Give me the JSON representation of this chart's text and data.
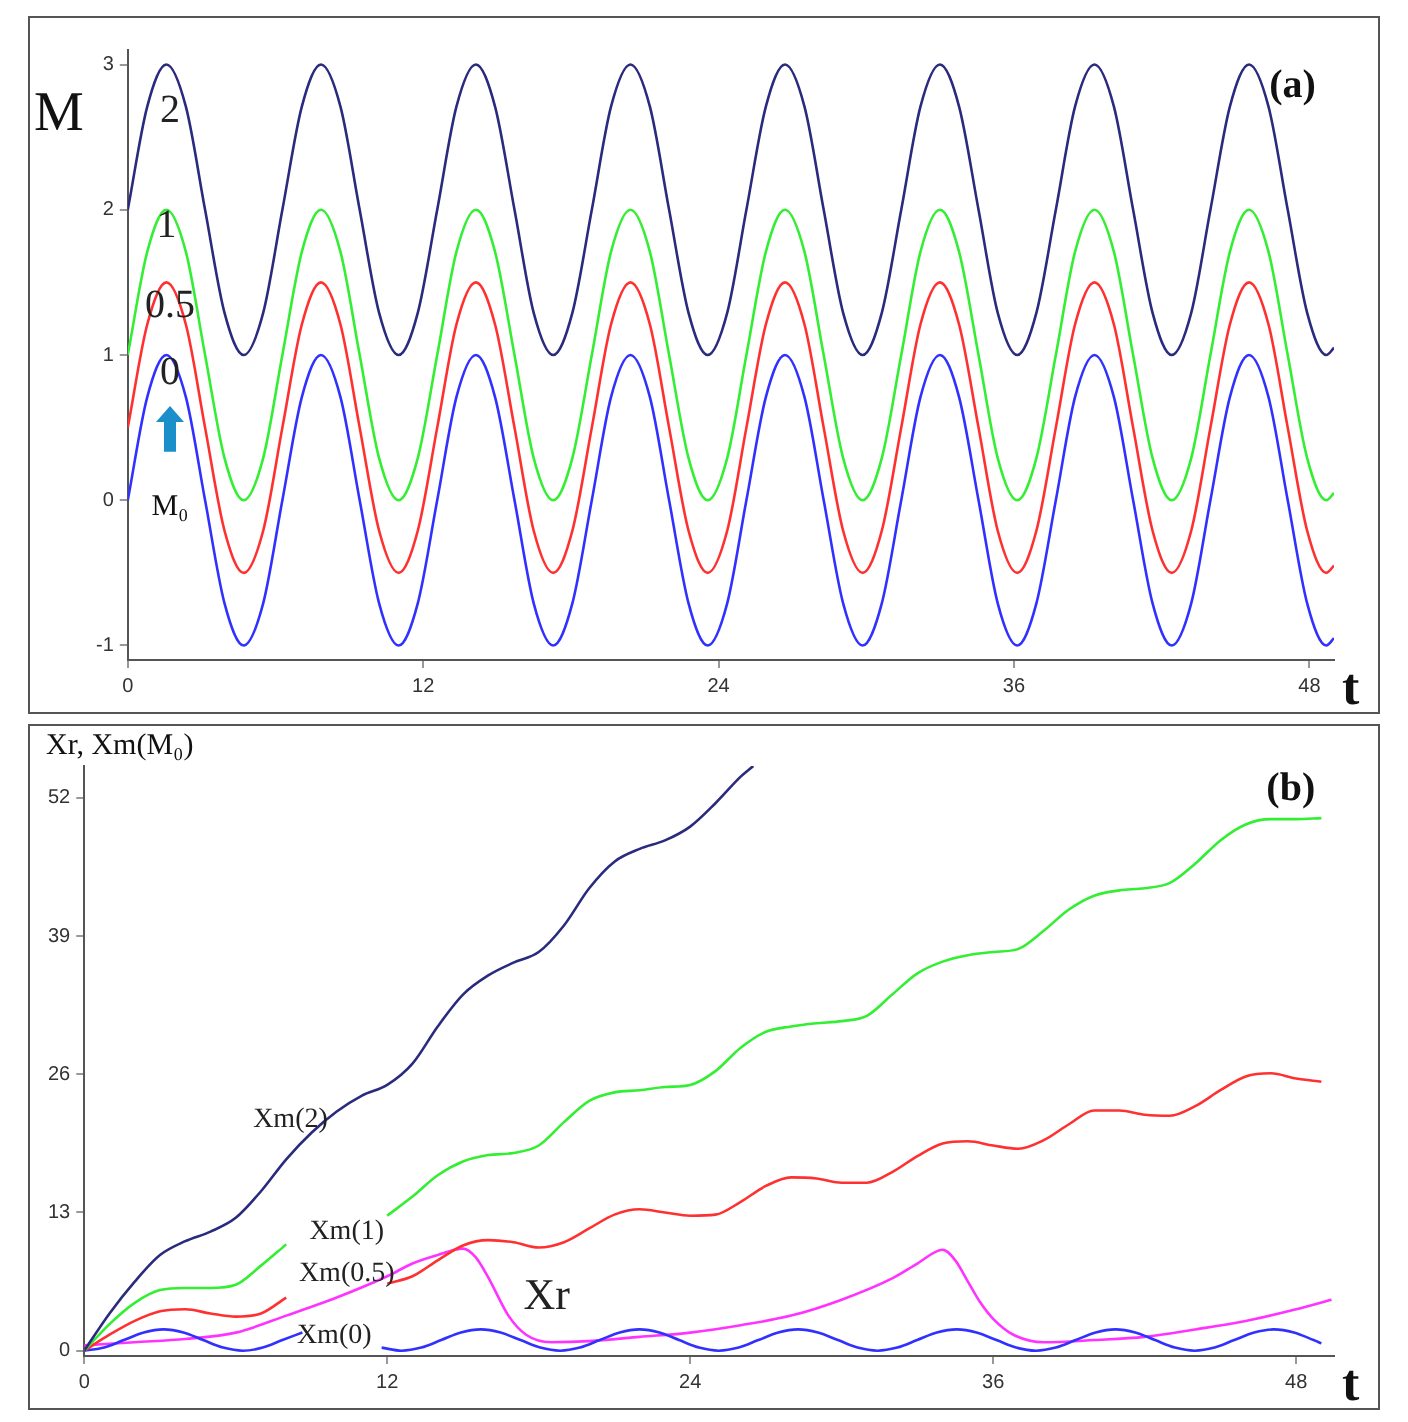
{
  "chart_data": [
    {
      "type": "line",
      "xlabel": "t",
      "ylabel": "M",
      "annotations": [
        "(a)",
        "M₀"
      ],
      "x": [
        0,
        0.79,
        1.57,
        2.36,
        3.14,
        3.93,
        4.71,
        5.5,
        6.28,
        7.07,
        7.85,
        8.64,
        9.42,
        10.21,
        11,
        11.78,
        12.57,
        13.35,
        14.14,
        14.92,
        15.71,
        16.49,
        17.28,
        18.06,
        18.85,
        19.63,
        20.42,
        21.21,
        21.99,
        22.78,
        23.56,
        24.35,
        25.13,
        25.92,
        26.7,
        27.49,
        28.27,
        29.06,
        29.85,
        30.63,
        31.42,
        32.2,
        32.99,
        33.77,
        34.56,
        35.34,
        36.13,
        36.91,
        37.7,
        38.48,
        39.27,
        40.06,
        40.84,
        41.63,
        42.41,
        43.2,
        43.98,
        44.77,
        45.55,
        46.34,
        47.12,
        47.91,
        48.69,
        49
      ],
      "xlim": [
        0,
        49
      ],
      "xticks": [
        0,
        12,
        24,
        36,
        48
      ],
      "ylim": [
        -1.1,
        3.1
      ],
      "yticks": [
        -1,
        0,
        1,
        2,
        3
      ],
      "series": [
        {
          "name": "2",
          "color": "#2a2a7e",
          "values": [
            2,
            2.71,
            3,
            2.71,
            2,
            1.29,
            1,
            1.29,
            2,
            2.71,
            3,
            2.71,
            2,
            1.29,
            1,
            1.29,
            2,
            2.71,
            3,
            2.71,
            2,
            1.29,
            1,
            1.29,
            2,
            2.71,
            3,
            2.71,
            2,
            1.29,
            1,
            1.29,
            2,
            2.71,
            3,
            2.71,
            2,
            1.29,
            1,
            1.29,
            2,
            2.71,
            3,
            2.71,
            2,
            1.29,
            1,
            1.29,
            2,
            2.71,
            3,
            2.71,
            2,
            1.29,
            1,
            1.29,
            2,
            2.71,
            3,
            2.71,
            2,
            1.29,
            1,
            1.05
          ]
        },
        {
          "name": "1",
          "color": "#33ee33",
          "values": [
            1,
            1.71,
            2,
            1.71,
            1,
            0.29,
            0,
            0.29,
            1,
            1.71,
            2,
            1.71,
            1,
            0.29,
            0,
            0.29,
            1,
            1.71,
            2,
            1.71,
            1,
            0.29,
            0,
            0.29,
            1,
            1.71,
            2,
            1.71,
            1,
            0.29,
            0,
            0.29,
            1,
            1.71,
            2,
            1.71,
            1,
            0.29,
            0,
            0.29,
            1,
            1.71,
            2,
            1.71,
            1,
            0.29,
            0,
            0.29,
            1,
            1.71,
            2,
            1.71,
            1,
            0.29,
            0,
            0.29,
            1,
            1.71,
            2,
            1.71,
            1,
            0.29,
            0,
            0.05
          ]
        },
        {
          "name": "0.5",
          "color": "#ff3030",
          "values": [
            0.5,
            1.21,
            1.5,
            1.21,
            0.5,
            -0.21,
            -0.5,
            -0.21,
            0.5,
            1.21,
            1.5,
            1.21,
            0.5,
            -0.21,
            -0.5,
            -0.21,
            0.5,
            1.21,
            1.5,
            1.21,
            0.5,
            -0.21,
            -0.5,
            -0.21,
            0.5,
            1.21,
            1.5,
            1.21,
            0.5,
            -0.21,
            -0.5,
            -0.21,
            0.5,
            1.21,
            1.5,
            1.21,
            0.5,
            -0.21,
            -0.5,
            -0.21,
            0.5,
            1.21,
            1.5,
            1.21,
            0.5,
            -0.21,
            -0.5,
            -0.21,
            0.5,
            1.21,
            1.5,
            1.21,
            0.5,
            -0.21,
            -0.5,
            -0.21,
            0.5,
            1.21,
            1.5,
            1.21,
            0.5,
            -0.21,
            -0.5,
            -0.45
          ]
        },
        {
          "name": "0",
          "color": "#3030ff",
          "values": [
            0,
            0.71,
            1,
            0.71,
            0,
            -0.71,
            -1,
            -0.71,
            0,
            0.71,
            1,
            0.71,
            0,
            -0.71,
            -1,
            -0.71,
            0,
            0.71,
            1,
            0.71,
            0,
            -0.71,
            -1,
            -0.71,
            0,
            0.71,
            1,
            0.71,
            0,
            -0.71,
            -1,
            -0.71,
            0,
            0.71,
            1,
            0.71,
            0,
            -0.71,
            -1,
            -0.71,
            0,
            0.71,
            1,
            0.71,
            0,
            -0.71,
            -1,
            -0.71,
            0,
            0.71,
            1,
            0.71,
            0,
            -0.71,
            -1,
            -0.71,
            0,
            0.71,
            1,
            0.71,
            0,
            -0.71,
            -1,
            -0.95
          ]
        }
      ]
    },
    {
      "type": "line",
      "xlabel": "t",
      "ylabel": "Xr, Xm(M₀)",
      "annotations": [
        "(b)"
      ],
      "xlim": [
        0,
        49.5
      ],
      "xticks": [
        0,
        12,
        24,
        36,
        48
      ],
      "ylim": [
        -0.5,
        55
      ],
      "yticks": [
        0,
        13,
        26,
        39,
        52
      ],
      "series": [
        {
          "name": "Xm(2)",
          "color": "#2a2a7e",
          "x": [
            0,
            1,
            2,
            3,
            4,
            5,
            6,
            7,
            8,
            9,
            10,
            11,
            12,
            13,
            14,
            15,
            16,
            17,
            18,
            19,
            20,
            21,
            22,
            23,
            24,
            25,
            26,
            26.5
          ],
          "values": [
            0,
            3.5,
            6.5,
            9,
            10.3,
            11.2,
            12.5,
            15,
            18,
            20.5,
            22.5,
            24,
            25,
            27,
            30.5,
            33.5,
            35.3,
            36.5,
            37.5,
            40,
            43.5,
            46,
            47.2,
            48,
            49.3,
            51.5,
            54,
            55
          ]
        },
        {
          "name": "Xm(1)",
          "color": "#33ee33",
          "x": [
            0,
            1,
            2,
            3,
            4,
            5,
            6,
            7,
            8,
            9,
            10,
            11,
            12,
            13,
            14,
            15,
            16,
            17,
            18,
            19,
            20,
            21,
            22,
            23,
            24,
            25,
            26,
            27,
            28,
            29,
            30,
            31,
            32,
            33,
            34,
            35,
            36,
            37,
            38,
            39,
            40,
            41,
            42,
            43,
            44,
            45,
            46,
            47,
            48,
            49
          ],
          "values": [
            0,
            2.5,
            4.5,
            5.7,
            5.9,
            5.9,
            6.2,
            8,
            10,
            null,
            null,
            null,
            12.7,
            14.5,
            16.5,
            17.8,
            18.4,
            18.6,
            19.3,
            21.5,
            23.5,
            24.3,
            24.5,
            24.8,
            25,
            26.3,
            28.5,
            30,
            30.5,
            30.8,
            31,
            31.5,
            33.5,
            35.5,
            36.6,
            37.2,
            37.5,
            37.8,
            39.5,
            41.5,
            42.8,
            43.3,
            43.5,
            44,
            45.8,
            48,
            49.5,
            50,
            50,
            50.1
          ]
        },
        {
          "name": "Xm(0.5)",
          "color": "#ff3030",
          "x": [
            0,
            1,
            2,
            3,
            4,
            5,
            6,
            7,
            8,
            9,
            10,
            11,
            12,
            13,
            14,
            15,
            16,
            17,
            18,
            19,
            20,
            21,
            22,
            23,
            24,
            25,
            26,
            27,
            28,
            29,
            30,
            31,
            32,
            33,
            34,
            35,
            36,
            37,
            38,
            39,
            40,
            41,
            42,
            43,
            44,
            45,
            46,
            47,
            48,
            49
          ],
          "values": [
            0,
            1.5,
            2.8,
            3.7,
            3.9,
            3.5,
            3.2,
            3.5,
            5,
            null,
            null,
            null,
            6.3,
            7,
            8.5,
            9.9,
            10.4,
            10.2,
            9.7,
            10.2,
            11.5,
            12.8,
            13.3,
            13,
            12.7,
            12.8,
            14,
            15.5,
            16.3,
            16.2,
            15.8,
            15.8,
            16.8,
            18.3,
            19.5,
            19.7,
            19.3,
            19,
            19.8,
            21.3,
            22.6,
            22.6,
            22.2,
            22.1,
            23,
            24.5,
            25.8,
            26.1,
            25.6,
            25.3
          ]
        },
        {
          "name": "Xm(0)",
          "color": "#3030ff",
          "x": [
            0,
            0.79,
            1.57,
            2.36,
            3.14,
            3.93,
            4.71,
            5.5,
            6.28,
            7.07,
            7.85,
            8.64,
            9.42,
            10.21,
            11,
            11.78,
            12.57,
            13.35,
            14.14,
            14.92,
            15.71,
            16.49,
            17.28,
            18.06,
            18.85,
            19.63,
            20.42,
            21.21,
            21.99,
            22.78,
            23.56,
            24.35,
            25.13,
            25.92,
            26.7,
            27.49,
            28.27,
            29.06,
            29.85,
            30.63,
            31.42,
            32.2,
            32.99,
            33.77,
            34.56,
            35.34,
            36.13,
            36.91,
            37.7,
            38.48,
            39.27,
            40.06,
            40.84,
            41.63,
            42.41,
            43.2,
            43.98,
            44.77,
            45.55,
            46.34,
            47.12,
            47.91,
            48.69,
            49
          ],
          "values": [
            0,
            0.29,
            1,
            1.71,
            2,
            1.71,
            1,
            0.29,
            0,
            0.29,
            1,
            1.71,
            null,
            null,
            null,
            0.29,
            0,
            0.29,
            1,
            1.71,
            2,
            1.71,
            1,
            0.29,
            0,
            0.29,
            1,
            1.71,
            2,
            1.71,
            1,
            0.29,
            0,
            0.29,
            1,
            1.71,
            2,
            1.71,
            1,
            0.29,
            0,
            0.29,
            1,
            1.71,
            2,
            1.71,
            1,
            0.29,
            0,
            0.29,
            1,
            1.71,
            2,
            1.71,
            1,
            0.29,
            0,
            0.29,
            1,
            1.71,
            2,
            1.71,
            1,
            0.7
          ]
        },
        {
          "name": "Xr",
          "color": "#ff33ff",
          "x": [
            0,
            2,
            4,
            6,
            8,
            10,
            12,
            13,
            14,
            15,
            15.5,
            16,
            16.8,
            17.5,
            18.5,
            20,
            22,
            24,
            26,
            28,
            30,
            32,
            33,
            34,
            34.5,
            35,
            35.5,
            36,
            36.8,
            38,
            40,
            42,
            44,
            46,
            48,
            49.4
          ],
          "values": [
            0.5,
            0.8,
            1.1,
            1.7,
            3.3,
            5,
            7,
            8.2,
            9,
            9.6,
            8.8,
            6.9,
            3.3,
            1.5,
            0.8,
            0.9,
            1.3,
            1.7,
            2.4,
            3.3,
            4.8,
            6.8,
            8.2,
            9.5,
            8.5,
            6.5,
            4.5,
            3,
            1.5,
            0.8,
            1,
            1.3,
            2,
            2.8,
            3.9,
            4.8
          ]
        }
      ]
    }
  ]
}
